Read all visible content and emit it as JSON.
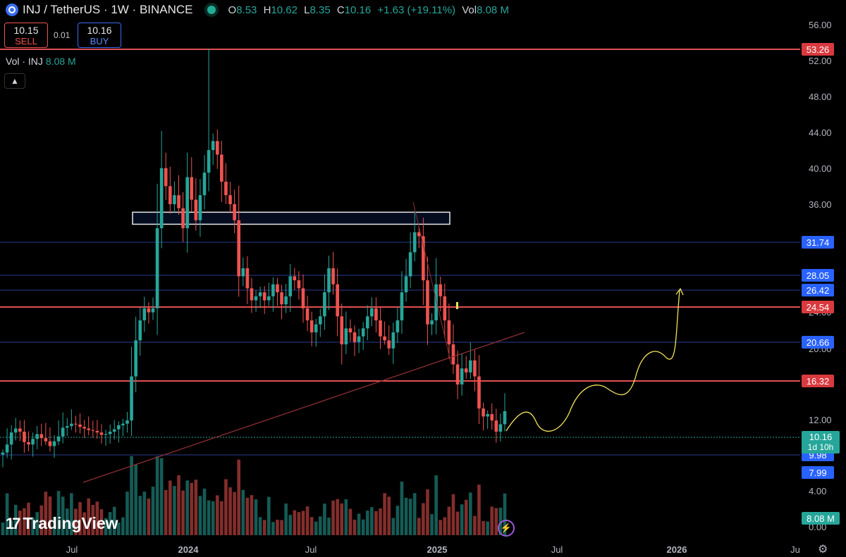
{
  "header": {
    "title": "INJ / TetherUS · 1W · BINANCE",
    "ohlc": [
      {
        "k": "O",
        "v": "8.53"
      },
      {
        "k": "H",
        "v": "10.62"
      },
      {
        "k": "L",
        "v": "8.35"
      },
      {
        "k": "C",
        "v": "10.16"
      },
      {
        "k": "",
        "v": "+1.63 (+19.11%)"
      },
      {
        "k": "Vol",
        "v": "8.08 M"
      }
    ]
  },
  "trade": {
    "sell_price": "10.15",
    "sell_label": "SELL",
    "spread": "0.01",
    "buy_price": "10.16",
    "buy_label": "BUY"
  },
  "volume_legend": {
    "label": "Vol · INJ",
    "value": "8.08 M"
  },
  "logo": {
    "text": "TradingView",
    "mark": "17"
  },
  "colors": {
    "up": "#26a69a",
    "down": "#ef5350",
    "red_line": "#e04f52",
    "blue_line": "#2a3d8f",
    "blue_label": "#2962ff",
    "projection": "#f2e35b",
    "trendline": "#8e2f33"
  },
  "icons": {
    "symbol": "inj-logo-icon",
    "live": "live-dot-icon",
    "collapse": "chevron-up-icon",
    "bolt": "lightning-icon",
    "settings": "gear-icon"
  },
  "chart_data": {
    "type": "candlestick",
    "title": "INJ / TetherUS · 1W · BINANCE",
    "y_ticks": [
      "56.00",
      "52.00",
      "48.00",
      "44.00",
      "40.00",
      "36.00",
      "24.00",
      "20.00",
      "12.00",
      "4.00",
      "0.00"
    ],
    "x_ticks": [
      "Jul",
      "2024",
      "Jul",
      "2025",
      "Jul",
      "2026",
      "Ju"
    ],
    "price_levels": [
      {
        "label": "53.26",
        "kind": "red"
      },
      {
        "label": "31.74",
        "kind": "blue"
      },
      {
        "label": "28.05",
        "kind": "blue"
      },
      {
        "label": "26.42",
        "kind": "blue"
      },
      {
        "label": "24.54",
        "kind": "red"
      },
      {
        "label": "20.66",
        "kind": "blue"
      },
      {
        "label": "16.32",
        "kind": "red"
      },
      {
        "label": "9.98",
        "kind": "blue"
      },
      {
        "label": "7.99",
        "kind": "blue"
      }
    ],
    "last_price": {
      "label": "10.16",
      "countdown": "1d 10h"
    },
    "last_volume": "8.08 M",
    "resistance_zone": [
      33.5,
      35.0
    ],
    "closes": [
      5.0,
      6.0,
      7.5,
      8.0,
      7.6,
      6.3,
      6.0,
      6.7,
      7.3,
      6.8,
      6.4,
      5.8,
      6.4,
      7.0,
      8.1,
      8.3,
      8.6,
      8.5,
      8.2,
      8.0,
      7.8,
      7.7,
      7.5,
      7.2,
      7.3,
      7.6,
      7.9,
      8.4,
      8.6,
      9.0,
      14.5,
      19.0,
      21.5,
      23.0,
      22.5,
      23.0,
      33.0,
      40.0,
      38.0,
      36.0,
      37.0,
      35.5,
      33.0,
      39.0,
      36.5,
      34.0,
      37.0,
      39.5,
      42.0,
      43.0,
      41.5,
      38.5,
      37.0,
      36.0,
      34.0,
      27.0,
      28.0,
      25.5,
      24.0,
      24.5,
      25.0,
      24.0,
      24.5,
      26.0,
      25.0,
      23.5,
      24.5,
      27.0,
      26.5,
      25.5,
      23.0,
      21.5,
      20.0,
      21.0,
      22.0,
      25.0,
      28.0,
      26.0,
      22.0,
      18.5,
      20.5,
      20.0,
      18.8,
      19.5,
      20.5,
      22.0,
      23.0,
      21.5,
      19.5,
      19.0,
      18.0,
      20.0,
      21.5,
      25.0,
      27.0,
      30.0,
      32.5,
      32.0,
      26.5,
      21.0,
      21.5,
      26.0,
      24.5,
      21.5,
      18.5,
      16.0,
      13.5,
      15.5,
      15.0,
      16.5,
      14.5,
      10.5,
      9.5,
      9.8,
      9.0,
      7.6,
      8.53,
      10.16
    ],
    "highs": {
      "ath": 53.26
    }
  }
}
